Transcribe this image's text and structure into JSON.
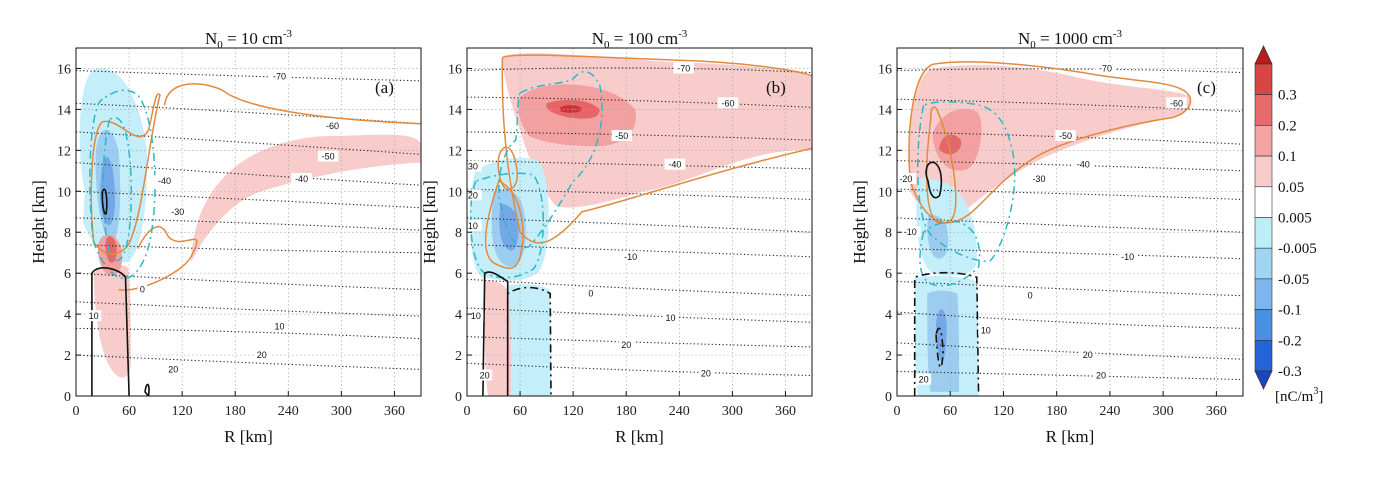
{
  "chart_data": [
    {
      "type": "contour",
      "panel_label": "(a)",
      "title_base": "N",
      "title_sub": "0",
      "title_mid": " = 10 cm",
      "title_sup": "-3",
      "xlabel": "R [km]",
      "ylabel": "Height [km]",
      "xlim": [
        0,
        390
      ],
      "ylim": [
        0,
        17
      ],
      "xticks": [
        0,
        60,
        120,
        180,
        240,
        300,
        360
      ],
      "yticks": [
        0,
        2,
        4,
        6,
        8,
        10,
        12,
        14,
        16
      ],
      "temperature_labels": [
        {
          "x": 230,
          "y": 15.6,
          "text": "-70"
        },
        {
          "x": 290,
          "y": 13.2,
          "text": "-60"
        },
        {
          "x": 285,
          "y": 11.7,
          "text": "-50"
        },
        {
          "x": 255,
          "y": 10.6,
          "text": "-40"
        },
        {
          "x": 100,
          "y": 10.5,
          "text": "-40"
        },
        {
          "x": 115,
          "y": 9.0,
          "text": "-30"
        },
        {
          "x": 75,
          "y": 5.2,
          "text": "0"
        },
        {
          "x": 20,
          "y": 3.9,
          "text": "10"
        },
        {
          "x": 230,
          "y": 3.4,
          "text": "10"
        },
        {
          "x": 210,
          "y": 2.0,
          "text": "20"
        },
        {
          "x": 110,
          "y": 1.3,
          "text": "20"
        }
      ]
    },
    {
      "type": "contour",
      "panel_label": "(b)",
      "title_base": "N",
      "title_sub": "0",
      "title_mid": " = 100 cm",
      "title_sup": "-3",
      "xlabel": "R [km]",
      "ylabel": "Height [km]",
      "xlim": [
        0,
        390
      ],
      "ylim": [
        0,
        17
      ],
      "xticks": [
        0,
        60,
        120,
        180,
        240,
        300,
        360
      ],
      "yticks": [
        0,
        2,
        4,
        6,
        8,
        10,
        12,
        14,
        16
      ],
      "temperature_labels": [
        {
          "x": 245,
          "y": 16.0,
          "text": "-70"
        },
        {
          "x": 295,
          "y": 14.3,
          "text": "-60"
        },
        {
          "x": 175,
          "y": 12.7,
          "text": "-50"
        },
        {
          "x": 235,
          "y": 11.3,
          "text": "-40"
        },
        {
          "x": 5,
          "y": 11.2,
          "text": "-30"
        },
        {
          "x": 5,
          "y": 9.8,
          "text": "-20"
        },
        {
          "x": 5,
          "y": 8.3,
          "text": "-10"
        },
        {
          "x": 185,
          "y": 6.8,
          "text": "-10"
        },
        {
          "x": 140,
          "y": 5.0,
          "text": "0"
        },
        {
          "x": 10,
          "y": 3.9,
          "text": "10"
        },
        {
          "x": 230,
          "y": 3.8,
          "text": "10"
        },
        {
          "x": 180,
          "y": 2.5,
          "text": "20"
        },
        {
          "x": 270,
          "y": 1.1,
          "text": "20"
        },
        {
          "x": 20,
          "y": 1.0,
          "text": "20"
        }
      ]
    },
    {
      "type": "contour",
      "panel_label": "(c)",
      "title_base": "N",
      "title_sub": "0",
      "title_mid": " = 1000 cm",
      "title_sup": "-3",
      "xlabel": "R [km]",
      "ylabel": "Height [km]",
      "xlim": [
        0,
        390
      ],
      "ylim": [
        0,
        17
      ],
      "xticks": [
        0,
        60,
        120,
        180,
        240,
        300,
        360
      ],
      "yticks": [
        0,
        2,
        4,
        6,
        8,
        10,
        12,
        14,
        16
      ],
      "temperature_labels": [
        {
          "x": 235,
          "y": 16.0,
          "text": "-70"
        },
        {
          "x": 315,
          "y": 14.3,
          "text": "-60"
        },
        {
          "x": 190,
          "y": 12.7,
          "text": "-50"
        },
        {
          "x": 210,
          "y": 11.3,
          "text": "-40"
        },
        {
          "x": 160,
          "y": 10.6,
          "text": "-30"
        },
        {
          "x": 10,
          "y": 10.6,
          "text": "-20"
        },
        {
          "x": 15,
          "y": 8.0,
          "text": "-10"
        },
        {
          "x": 260,
          "y": 6.8,
          "text": "-10"
        },
        {
          "x": 150,
          "y": 4.9,
          "text": "0"
        },
        {
          "x": 100,
          "y": 3.2,
          "text": "10"
        },
        {
          "x": 215,
          "y": 2.0,
          "text": "20"
        },
        {
          "x": 230,
          "y": 1.0,
          "text": "20"
        },
        {
          "x": 30,
          "y": 0.8,
          "text": "20"
        }
      ]
    }
  ],
  "colorbar": {
    "unit_label": "[nC/m",
    "unit_sup": "3",
    "unit_close": "]",
    "levels": [
      "0.3",
      "0.2",
      "0.1",
      "0.05",
      "0.005",
      "-0.005",
      "-0.05",
      "-0.1",
      "-0.2",
      "-0.3"
    ],
    "colors": [
      "#b81c1c",
      "#d84545",
      "#e96a6a",
      "#f5a3a3",
      "#f9cccc",
      "#ffffff",
      "#bdeef7",
      "#a0d4f3",
      "#7db6ec",
      "#4a90e2",
      "#2563d8",
      "#1747c0"
    ]
  },
  "colors": {
    "pos1": "#f9cccc",
    "pos2": "#f2a0a0",
    "pos3": "#e46666",
    "pos4": "#c73636",
    "neg1": "#c4eefa",
    "neg2": "#9ccdf1",
    "neg3": "#72a7e8",
    "neg4": "#3f7fdc",
    "orange": "#e28a3e",
    "cyan": "#2ab9c6",
    "black": "#111111"
  }
}
